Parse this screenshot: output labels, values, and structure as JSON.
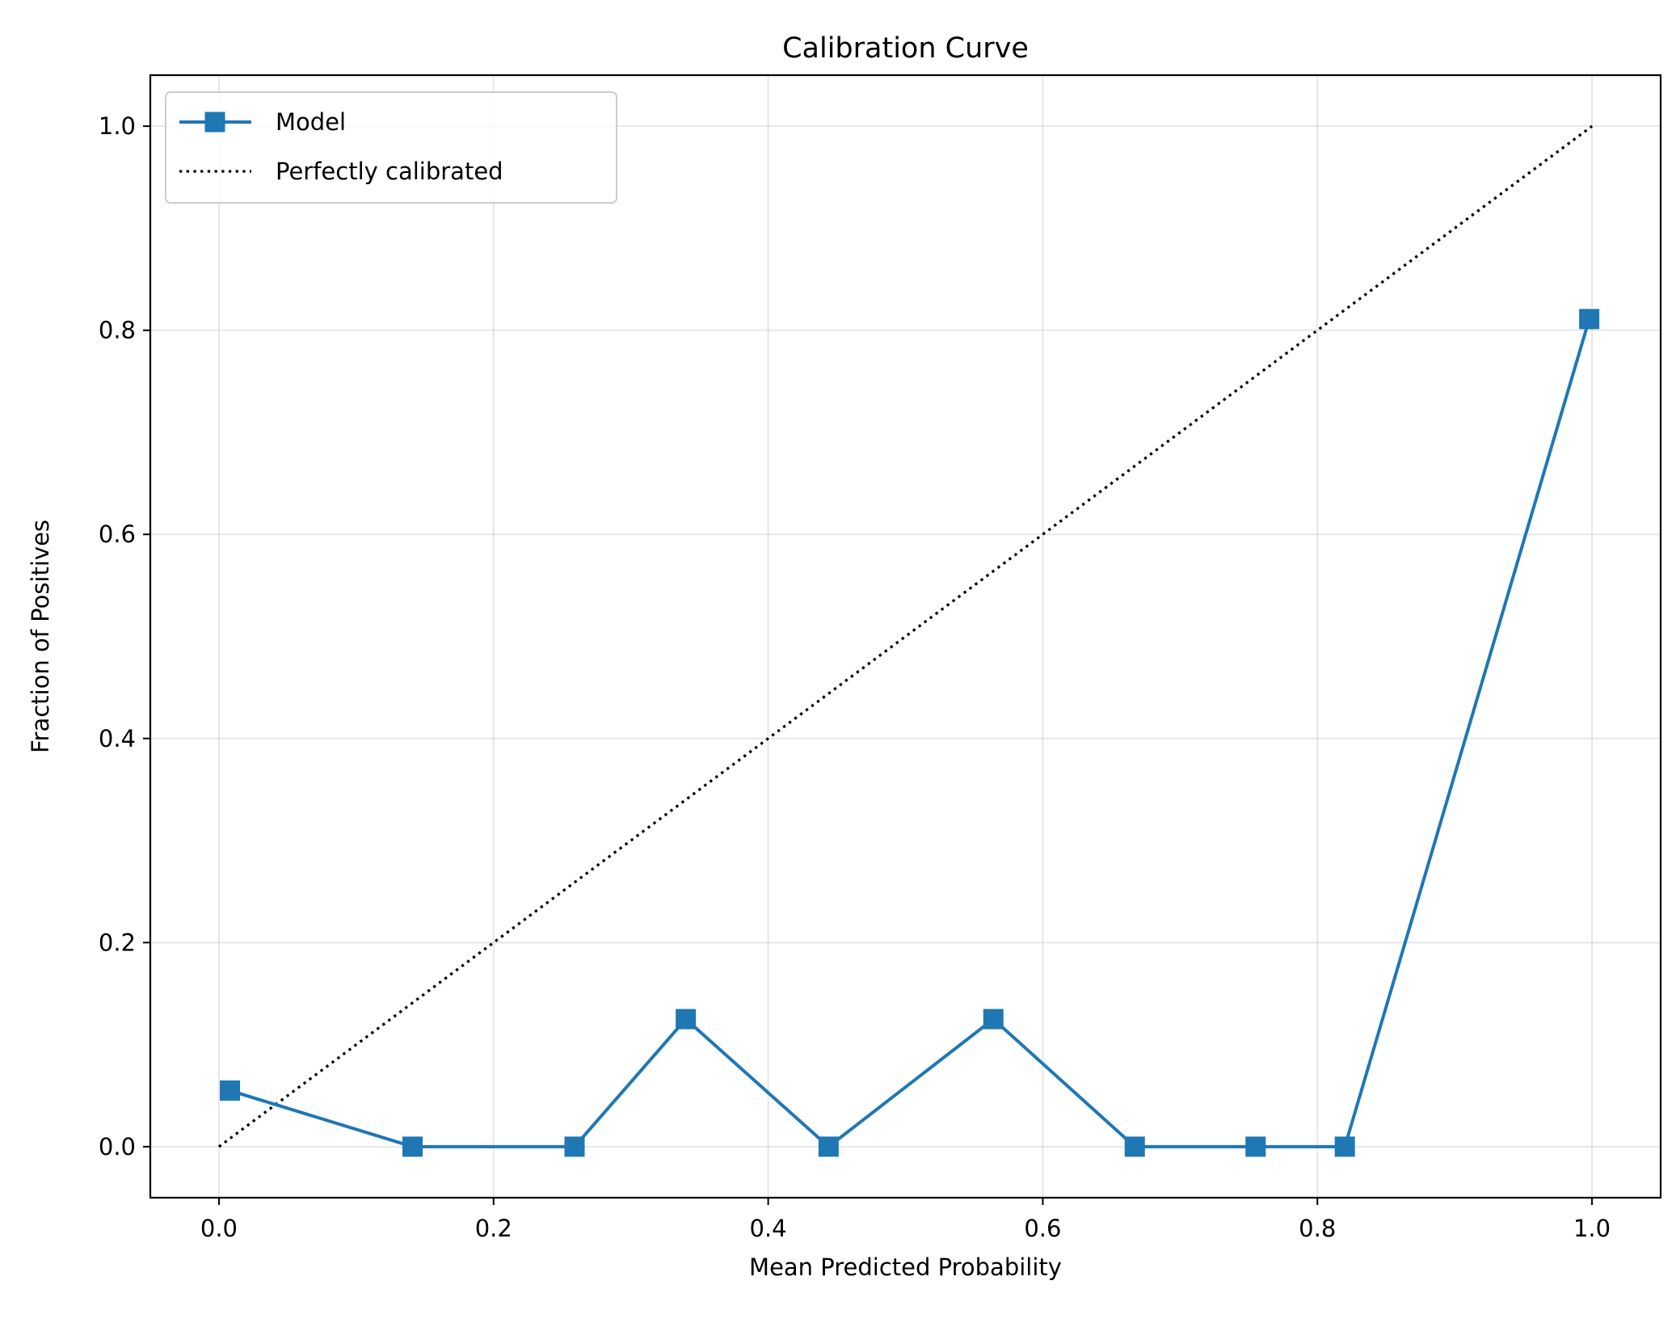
{
  "chart_data": {
    "type": "line",
    "title": "Calibration Curve",
    "xlabel": "Mean Predicted Probability",
    "ylabel": "Fraction of Positives",
    "xlim": [
      -0.05,
      1.05
    ],
    "ylim": [
      -0.05,
      1.05
    ],
    "xticks": [
      "0.0",
      "0.2",
      "0.4",
      "0.6",
      "0.8",
      "1.0"
    ],
    "yticks": [
      "0.0",
      "0.2",
      "0.4",
      "0.6",
      "0.8",
      "1.0"
    ],
    "grid": true,
    "legend_position": "top-left",
    "series": [
      {
        "name": "Model",
        "style": "line-square-markers",
        "color": "#1f77b4",
        "x": [
          0.008,
          0.141,
          0.259,
          0.34,
          0.444,
          0.564,
          0.667,
          0.755,
          0.82,
          0.998
        ],
        "y": [
          0.055,
          0.0,
          0.0,
          0.125,
          0.0,
          0.125,
          0.0,
          0.0,
          0.0,
          0.811
        ]
      },
      {
        "name": "Perfectly calibrated",
        "style": "dotted",
        "color": "#000000",
        "x": [
          0.0,
          1.0
        ],
        "y": [
          0.0,
          1.0
        ]
      }
    ]
  }
}
